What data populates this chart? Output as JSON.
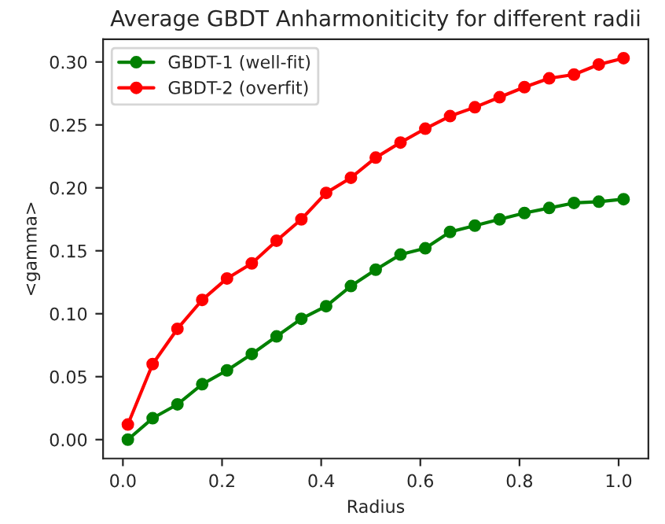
{
  "chart_data": {
    "type": "line",
    "title": "Average GBDT Anharmoniticity for different radii",
    "xlabel": "Radius",
    "ylabel": "<gamma>",
    "x": [
      0.01,
      0.06,
      0.11,
      0.16,
      0.21,
      0.26,
      0.31,
      0.36,
      0.41,
      0.46,
      0.51,
      0.56,
      0.61,
      0.66,
      0.71,
      0.76,
      0.81,
      0.86,
      0.91,
      0.96,
      1.01
    ],
    "series": [
      {
        "name": "GBDT-1 (well-fit)",
        "color": "#008000",
        "values": [
          0.0,
          0.017,
          0.028,
          0.044,
          0.055,
          0.068,
          0.082,
          0.096,
          0.106,
          0.122,
          0.135,
          0.147,
          0.152,
          0.165,
          0.17,
          0.175,
          0.18,
          0.184,
          0.188,
          0.189,
          0.191
        ]
      },
      {
        "name": "GBDT-2 (overfit)",
        "color": "#ff0000",
        "values": [
          0.012,
          0.06,
          0.088,
          0.111,
          0.128,
          0.14,
          0.158,
          0.175,
          0.196,
          0.208,
          0.224,
          0.236,
          0.247,
          0.257,
          0.264,
          0.272,
          0.28,
          0.287,
          0.29,
          0.298,
          0.303
        ]
      }
    ],
    "xlim": [
      -0.04,
      1.06
    ],
    "ylim": [
      -0.015,
      0.318
    ],
    "xticks": [
      {
        "value": 0.0,
        "label": "0.0"
      },
      {
        "value": 0.2,
        "label": "0.2"
      },
      {
        "value": 0.4,
        "label": "0.4"
      },
      {
        "value": 0.6,
        "label": "0.6"
      },
      {
        "value": 0.8,
        "label": "0.8"
      },
      {
        "value": 1.0,
        "label": "1.0"
      }
    ],
    "yticks": [
      {
        "value": 0.0,
        "label": "0.00"
      },
      {
        "value": 0.05,
        "label": "0.05"
      },
      {
        "value": 0.1,
        "label": "0.10"
      },
      {
        "value": 0.15,
        "label": "0.15"
      },
      {
        "value": 0.2,
        "label": "0.20"
      },
      {
        "value": 0.25,
        "label": "0.25"
      },
      {
        "value": 0.3,
        "label": "0.30"
      }
    ],
    "marker": "circle",
    "legend": "top left",
    "grid": false
  }
}
